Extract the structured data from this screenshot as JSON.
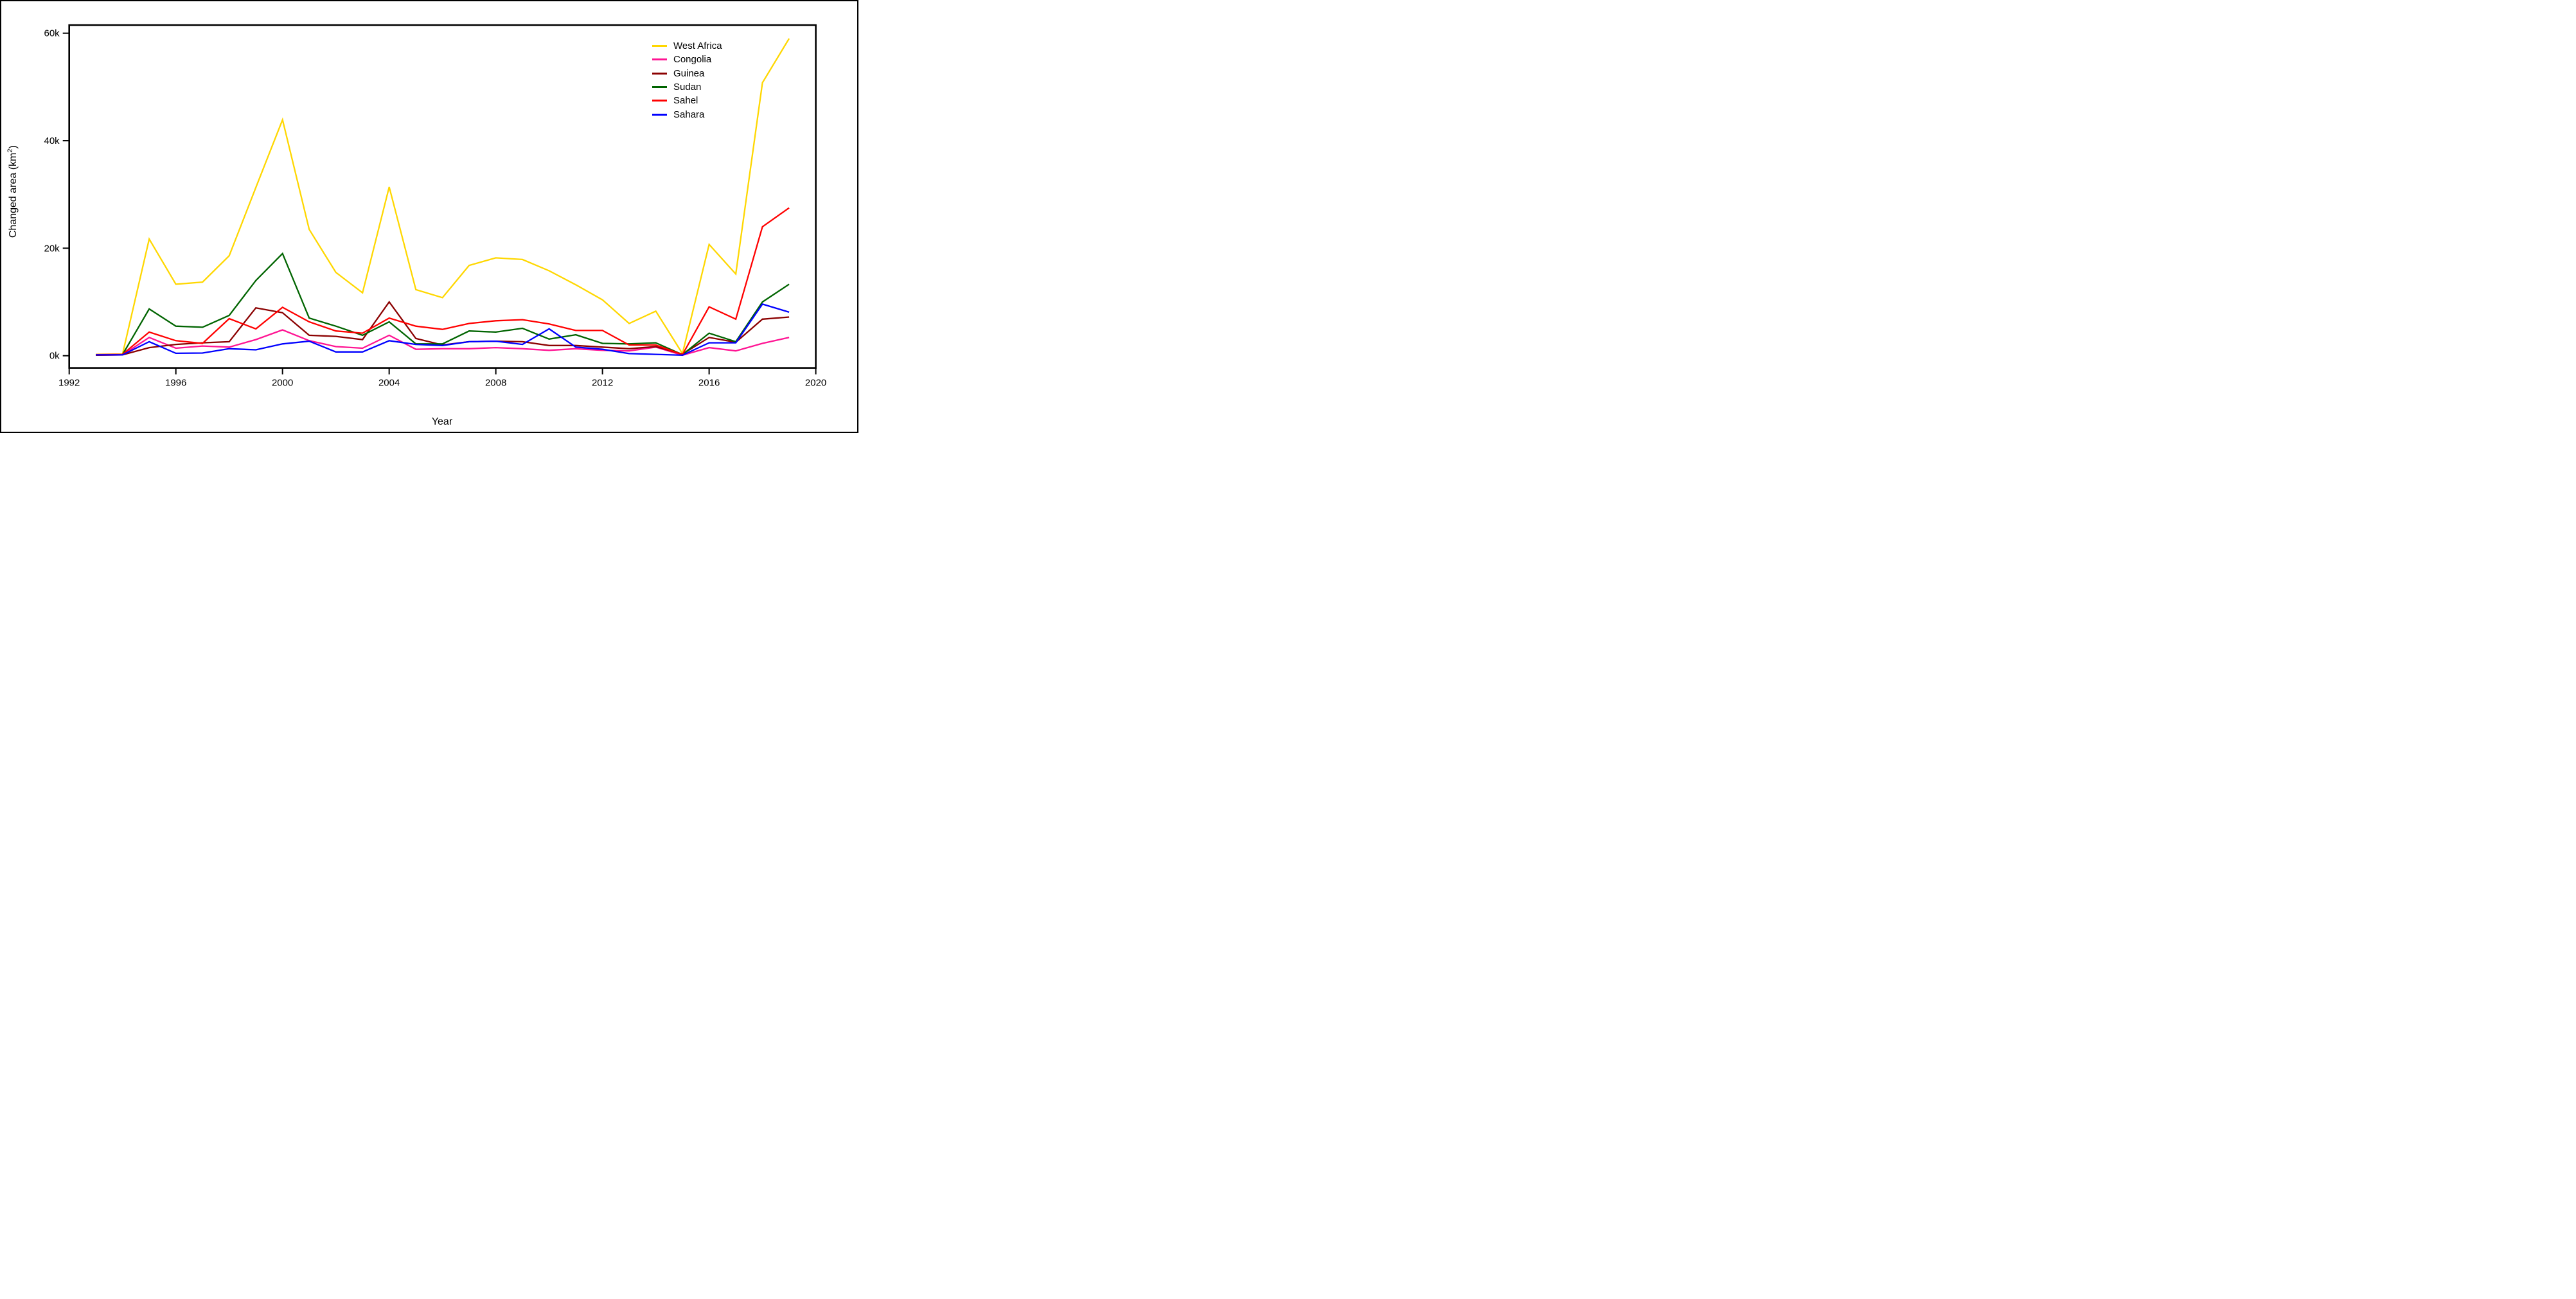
{
  "chart_data": {
    "type": "line",
    "title": "",
    "xlabel": "Year",
    "ylabel": "Changed area (km²)",
    "ylabel_parts": {
      "prefix": "Changed area (km",
      "sup": "2",
      "suffix": ")"
    },
    "units": "thousand km² (axis labels shown with k suffix)",
    "grid": false,
    "legend_position": "top-right",
    "xlim": [
      1992,
      2020
    ],
    "ylim": [
      0,
      60
    ],
    "x_ticks": [
      "1992",
      "1996",
      "2000",
      "2004",
      "2008",
      "2012",
      "2016",
      "2020"
    ],
    "y_ticks": [
      {
        "value": 0,
        "label": "0k"
      },
      {
        "value": 20,
        "label": "20k"
      },
      {
        "value": 40,
        "label": "40k"
      },
      {
        "value": 60,
        "label": "60k"
      }
    ],
    "x": [
      1993,
      1994,
      1995,
      1996,
      1997,
      1998,
      1999,
      2000,
      2001,
      2002,
      2003,
      2004,
      2005,
      2006,
      2007,
      2008,
      2009,
      2010,
      2011,
      2012,
      2013,
      2014,
      2015,
      2016,
      2017,
      2018,
      2019
    ],
    "series": [
      {
        "name": "West Africa",
        "color": "#FFD700",
        "values": [
          0.25,
          0.3,
          21.7,
          13.3,
          13.7,
          18.6,
          31.3,
          43.9,
          23.5,
          15.5,
          11.7,
          31.4,
          12.3,
          10.8,
          16.8,
          18.2,
          17.9,
          15.8,
          13.2,
          10.4,
          6.0,
          8.3,
          0.4,
          20.7,
          15.2,
          50.8,
          59.0
        ]
      },
      {
        "name": "Congolia",
        "color": "#FF1493",
        "values": [
          0.1,
          0.15,
          3.4,
          1.4,
          1.8,
          1.6,
          3.0,
          4.8,
          2.8,
          1.7,
          1.4,
          3.8,
          1.2,
          1.3,
          1.3,
          1.5,
          1.3,
          1.0,
          1.3,
          1.0,
          0.9,
          1.6,
          0.1,
          1.5,
          0.9,
          2.3,
          3.4
        ]
      },
      {
        "name": "Guinea",
        "color": "#8B0000",
        "values": [
          0.1,
          0.15,
          1.5,
          2.1,
          2.4,
          2.6,
          8.9,
          8.0,
          3.8,
          3.6,
          3.0,
          10.0,
          3.2,
          2.0,
          2.6,
          2.7,
          2.6,
          1.9,
          1.9,
          1.6,
          1.3,
          1.7,
          0.3,
          3.4,
          2.5,
          6.8,
          7.2
        ]
      },
      {
        "name": "Sudan",
        "color": "#006400",
        "values": [
          0.15,
          0.2,
          8.7,
          5.5,
          5.3,
          7.5,
          14.0,
          19.0,
          7.0,
          5.5,
          3.8,
          6.3,
          2.2,
          2.2,
          4.6,
          4.4,
          5.1,
          3.1,
          3.9,
          2.3,
          2.2,
          2.4,
          0.2,
          4.2,
          2.6,
          10.0,
          13.3
        ]
      },
      {
        "name": "Sahel",
        "color": "#FF0000",
        "values": [
          0.2,
          0.25,
          4.4,
          2.8,
          2.3,
          6.9,
          5.0,
          9.0,
          6.3,
          4.6,
          4.2,
          7.0,
          5.5,
          4.9,
          6.0,
          6.5,
          6.7,
          5.9,
          4.7,
          4.7,
          2.0,
          2.0,
          0.2,
          9.1,
          6.8,
          24.0,
          27.5
        ]
      },
      {
        "name": "Sahara",
        "color": "#0000FF",
        "values": [
          0.15,
          0.15,
          2.6,
          0.45,
          0.5,
          1.3,
          1.1,
          2.2,
          2.7,
          0.7,
          0.7,
          2.8,
          2.1,
          1.9,
          2.6,
          2.7,
          2.1,
          5.0,
          1.6,
          1.2,
          0.4,
          0.25,
          0.1,
          2.4,
          2.4,
          9.6,
          8.1
        ]
      }
    ]
  },
  "legend": {
    "items": [
      {
        "label": "West Africa"
      },
      {
        "label": "Congolia"
      },
      {
        "label": "Guinea"
      },
      {
        "label": "Sudan"
      },
      {
        "label": "Sahel"
      },
      {
        "label": "Sahara"
      }
    ]
  }
}
